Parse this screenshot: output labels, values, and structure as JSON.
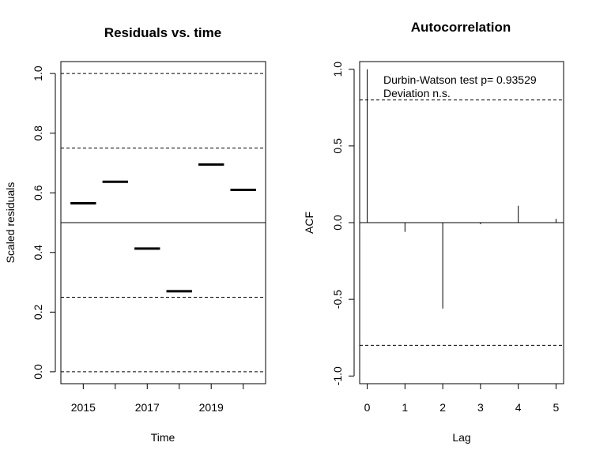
{
  "chart_data": [
    {
      "type": "scatter",
      "marker": "horizontal-segment",
      "title": "Residuals vs. time",
      "xlabel": "Time",
      "ylabel": "Scaled residuals",
      "x_tick_labels": [
        "2015",
        "2017",
        "2019"
      ],
      "x_tick_values": [
        2015,
        2016,
        2017,
        2018,
        2019,
        2020
      ],
      "y_ticks": [
        "0.0",
        "0.2",
        "0.4",
        "0.6",
        "0.8",
        "1.0"
      ],
      "y_tick_values": [
        0,
        0.2,
        0.4,
        0.6,
        0.8,
        1.0
      ],
      "xlim": [
        2014.3,
        2020.7
      ],
      "ylim": [
        -0.04,
        1.04
      ],
      "x": [
        2015,
        2016,
        2017,
        2018,
        2019,
        2020
      ],
      "values": [
        0.565,
        0.637,
        0.413,
        0.27,
        0.695,
        0.61
      ],
      "reference_solid": [
        0.5
      ],
      "reference_dashed": [
        0,
        0.25,
        0.75,
        1.0
      ],
      "grid": false,
      "color": "#000000"
    },
    {
      "type": "bar",
      "marker": "spike",
      "title": "Autocorrelation",
      "xlabel": "Lag",
      "ylabel": "ACF",
      "x_tick_labels": [
        "0",
        "1",
        "2",
        "3",
        "4",
        "5"
      ],
      "x_tick_values": [
        0,
        1,
        2,
        3,
        4,
        5
      ],
      "y_ticks": [
        "-1.0",
        "-0.5",
        "0.0",
        "0.5",
        "1.0"
      ],
      "y_tick_values": [
        -1,
        -0.5,
        0,
        0.5,
        1
      ],
      "xlim": [
        -0.2,
        5.2
      ],
      "ylim": [
        -1.05,
        1.05
      ],
      "x": [
        0,
        1,
        2,
        3,
        4,
        5
      ],
      "values": [
        1.0,
        -0.06,
        -0.56,
        -0.01,
        0.11,
        0.025
      ],
      "reference_solid": [
        0
      ],
      "reference_dashed": [
        0.8,
        -0.8
      ],
      "annotation_lines": [
        "Durbin-Watson test  p= 0.93529",
        "Deviation  n.s."
      ],
      "grid": false,
      "color": "#000000"
    }
  ]
}
